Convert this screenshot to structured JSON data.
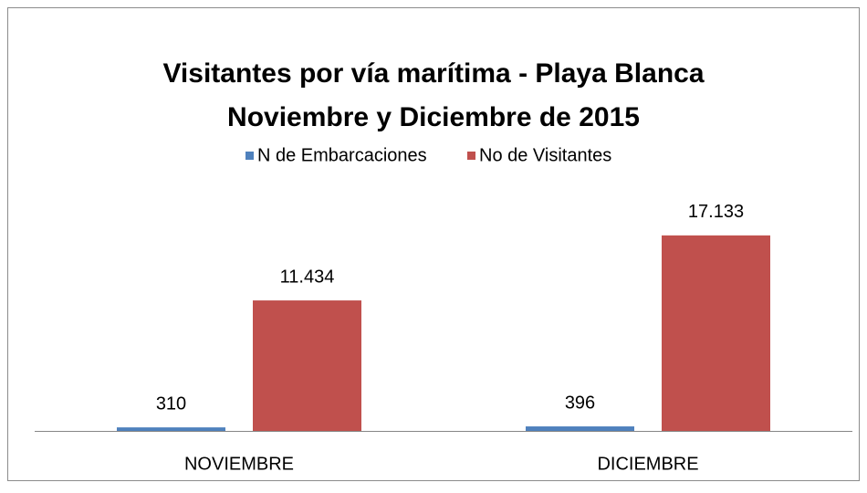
{
  "chart_data": {
    "type": "bar",
    "title": "Visitantes por vía marítima  - Playa Blanca",
    "subtitle": "Noviembre y Diciembre de 2015",
    "categories": [
      "NOVIEMBRE",
      "DICIEMBRE"
    ],
    "series": [
      {
        "name": "N de Embarcaciones",
        "color": "#4f81bd",
        "values": [
          310,
          396
        ],
        "value_labels": [
          "310",
          "396"
        ]
      },
      {
        "name": "No de Visitantes",
        "color": "#c0504d",
        "values": [
          11434,
          17133
        ],
        "value_labels": [
          "11.434",
          "17.133"
        ]
      }
    ],
    "ylim": [
      0,
      20000
    ],
    "legend": "top"
  }
}
